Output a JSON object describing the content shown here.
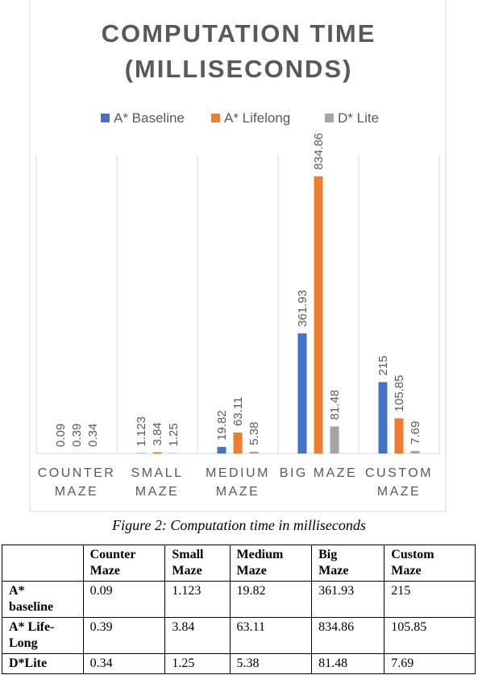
{
  "chart_data": {
    "type": "bar",
    "title": "COMPUTATION TIME (MILLISECONDS)",
    "categories": [
      [
        "COUNTER",
        "MAZE"
      ],
      [
        "SMALL",
        "MAZE"
      ],
      [
        "MEDIUM",
        "MAZE"
      ],
      [
        "BIG MAZE"
      ],
      [
        "CUSTOM",
        "MAZE"
      ]
    ],
    "series": [
      {
        "name": "A* Baseline",
        "color": "#4472c4",
        "values": [
          0.09,
          1.123,
          19.82,
          361.93,
          215
        ]
      },
      {
        "name": "A* Lifelong",
        "color": "#ed7d31",
        "values": [
          0.39,
          3.84,
          63.11,
          834.86,
          105.85
        ]
      },
      {
        "name": "D* Lite",
        "color": "#a5a5a5",
        "values": [
          0.34,
          1.25,
          5.38,
          81.48,
          7.69
        ]
      }
    ],
    "ylim": [
      0,
      900
    ],
    "legend": "top"
  },
  "caption": "Figure 2: Computation time in milliseconds",
  "table": {
    "header": [
      "",
      "Counter Maze",
      "Small Maze",
      "Medium Maze",
      "Big Maze",
      "Custom Maze"
    ],
    "rows": [
      [
        "A* baseline",
        "0.09",
        "1.123",
        "19.82",
        "361.93",
        "215"
      ],
      [
        "A* Life-Long",
        "0.39",
        "3.84",
        "63.11",
        "834.86",
        "105.85"
      ],
      [
        "D*Lite",
        "0.34",
        "1.25",
        "5.38",
        "81.48",
        "7.69"
      ]
    ]
  }
}
